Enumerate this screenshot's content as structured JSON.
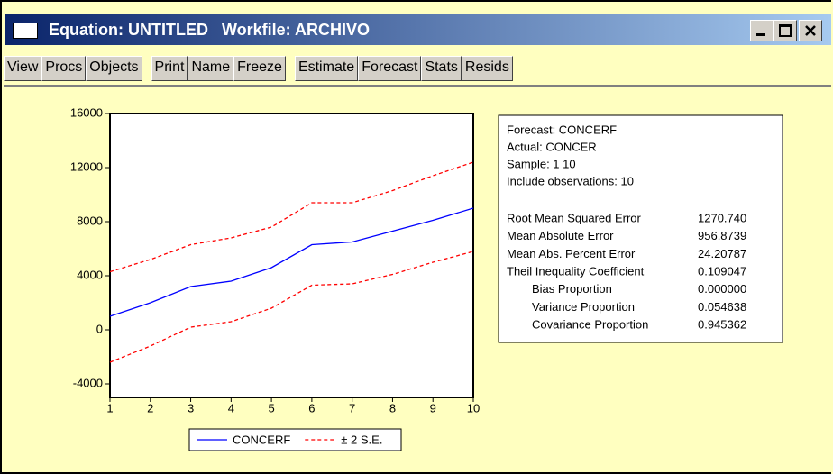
{
  "window": {
    "title": "Equation: UNTITLED   Workfile: ARCHIVO"
  },
  "toolbar": [
    [
      "View",
      "Procs",
      "Objects"
    ],
    [
      "Print",
      "Name",
      "Freeze"
    ],
    [
      "Estimate",
      "Forecast",
      "Stats",
      "Resids"
    ]
  ],
  "chart_data": {
    "type": "line",
    "x": [
      1,
      2,
      3,
      4,
      5,
      6,
      7,
      8,
      9,
      10
    ],
    "xlim": [
      1,
      10
    ],
    "xticks": [
      1,
      2,
      3,
      4,
      5,
      6,
      7,
      8,
      9,
      10
    ],
    "ylim": [
      -5000,
      16000
    ],
    "yticks": [
      -4000,
      0,
      4000,
      8000,
      12000,
      16000
    ],
    "grid": false,
    "series": [
      {
        "name": "CONCERF",
        "color": "#0000ff",
        "dash": false,
        "values": [
          1000,
          2000,
          3200,
          3600,
          4600,
          6300,
          6500,
          7300,
          8100,
          9000
        ]
      },
      {
        "name": "± 2 S.E.",
        "color": "#ff0000",
        "dash": true,
        "values": [
          4300,
          5200,
          6300,
          6800,
          7600,
          9400,
          9400,
          10300,
          11400,
          12400
        ],
        "lower": [
          -2400,
          -1200,
          200,
          600,
          1600,
          3300,
          3400,
          4100,
          5000,
          5800
        ]
      }
    ]
  },
  "stats": {
    "header": [
      "Forecast: CONCERF",
      "Actual: CONCER",
      "Sample: 1 10",
      "Include observations: 10"
    ],
    "rows": [
      [
        "Root Mean Squared Error",
        "1270.740"
      ],
      [
        "Mean Absolute Error",
        "956.8739"
      ],
      [
        "Mean Abs. Percent Error",
        "24.20787"
      ],
      [
        "Theil Inequality Coefficient",
        "0.109047"
      ],
      [
        "Bias Proportion",
        "0.000000"
      ],
      [
        "Variance Proportion",
        "0.054638"
      ],
      [
        "Covariance Proportion",
        "0.945362"
      ]
    ]
  }
}
